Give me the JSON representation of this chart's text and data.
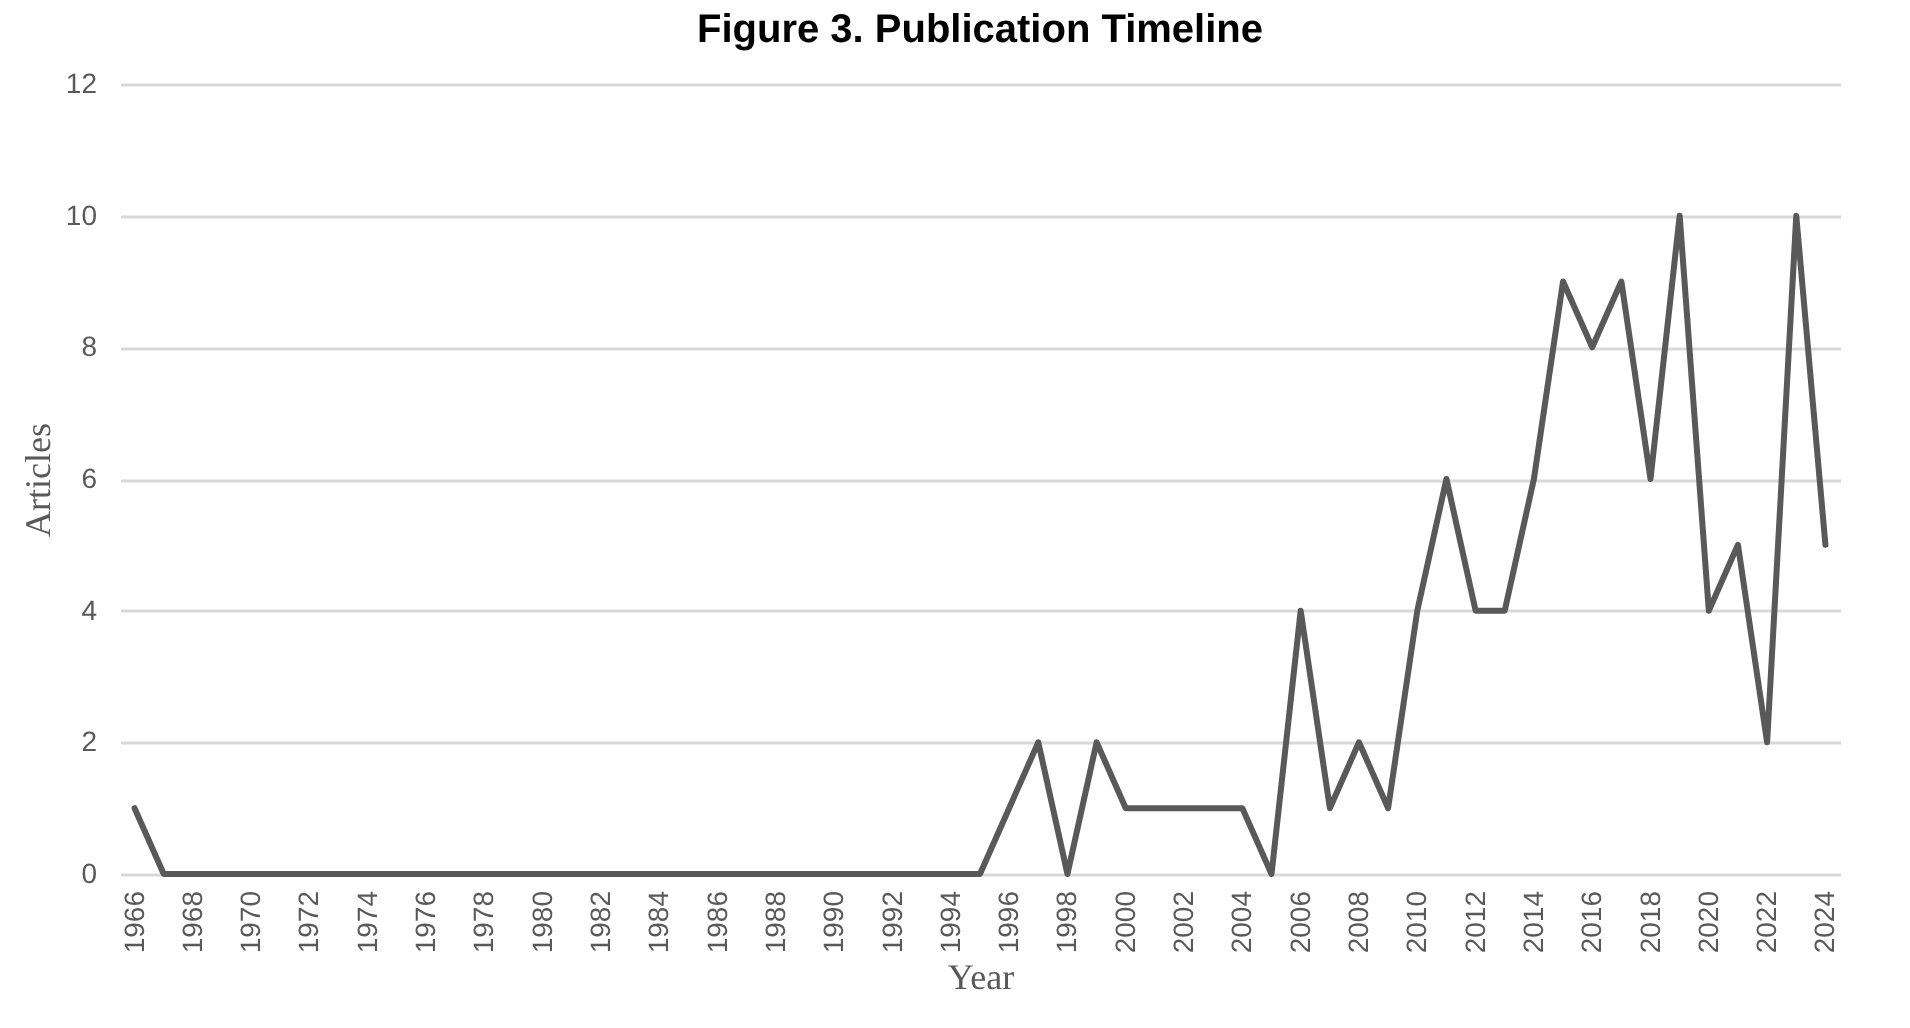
{
  "chart_data": {
    "type": "line",
    "title": "Figure 3. Publication Timeline",
    "xlabel": "Year",
    "ylabel": "Articles",
    "x": [
      1966,
      1967,
      1968,
      1969,
      1970,
      1971,
      1972,
      1973,
      1974,
      1975,
      1976,
      1977,
      1978,
      1979,
      1980,
      1981,
      1982,
      1983,
      1984,
      1985,
      1986,
      1987,
      1988,
      1989,
      1990,
      1991,
      1992,
      1993,
      1994,
      1995,
      1996,
      1997,
      1998,
      1999,
      2000,
      2001,
      2002,
      2003,
      2004,
      2005,
      2006,
      2007,
      2008,
      2009,
      2010,
      2011,
      2012,
      2013,
      2014,
      2015,
      2016,
      2017,
      2018,
      2019,
      2020,
      2021,
      2022,
      2023,
      2024
    ],
    "series": [
      {
        "color": "#595959",
        "values": [
          1,
          0,
          0,
          0,
          0,
          0,
          0,
          0,
          0,
          0,
          0,
          0,
          0,
          0,
          0,
          0,
          0,
          0,
          0,
          0,
          0,
          0,
          0,
          0,
          0,
          0,
          0,
          0,
          0,
          0,
          1,
          2,
          0,
          2,
          1,
          1,
          1,
          1,
          1,
          0,
          4,
          1,
          2,
          1,
          4,
          6,
          4,
          4,
          6,
          9,
          8,
          9,
          6,
          10,
          4,
          5,
          2,
          10,
          5
        ]
      }
    ],
    "xlim": [
      1965.5,
      2024.5
    ],
    "xticks": [
      1966,
      1968,
      1970,
      1972,
      1974,
      1976,
      1978,
      1980,
      1982,
      1984,
      1986,
      1988,
      1990,
      1992,
      1994,
      1996,
      1998,
      2000,
      2002,
      2004,
      2006,
      2008,
      2010,
      2012,
      2014,
      2016,
      2018,
      2020,
      2022,
      2024
    ],
    "ylim": [
      0,
      12
    ],
    "yticks": [
      0,
      2,
      4,
      6,
      8,
      10,
      12
    ],
    "grid": "y"
  }
}
